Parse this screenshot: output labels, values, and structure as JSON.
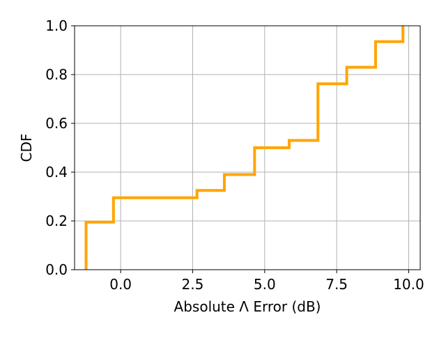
{
  "chart_data": {
    "type": "line",
    "title": "",
    "xlabel": "Absolute Λ Error (dB)",
    "ylabel": "CDF",
    "xlim": [
      -1.6,
      10.4
    ],
    "ylim": [
      0.0,
      1.0
    ],
    "x_ticks": [
      0.0,
      2.5,
      5.0,
      7.5,
      10.0
    ],
    "x_tick_labels": [
      "0.0",
      "2.5",
      "5.0",
      "7.5",
      "10.0"
    ],
    "y_ticks": [
      0.0,
      0.2,
      0.4,
      0.6,
      0.8,
      1.0
    ],
    "y_tick_labels": [
      "0.0",
      "0.2",
      "0.4",
      "0.6",
      "0.8",
      "1.0"
    ],
    "grid": true,
    "step": "post",
    "series": [
      {
        "color": "#FFA500",
        "x": [
          -1.2,
          -0.25,
          2.65,
          3.6,
          4.65,
          5.85,
          6.85,
          7.85,
          8.85,
          9.8
        ],
        "y": [
          0.195,
          0.295,
          0.325,
          0.39,
          0.5,
          0.53,
          0.762,
          0.83,
          0.935,
          1.0
        ]
      }
    ]
  }
}
